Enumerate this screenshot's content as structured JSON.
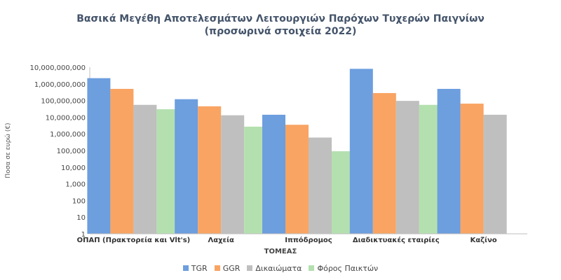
{
  "chart_data": {
    "type": "bar",
    "title": "Βασικά Μεγέθη Αποτελεσμάτων Λειτουργιών Παρόχων Τυχερών Παιγνίων",
    "subtitle": "(προσωρινά στοιχεία 2022)",
    "xlabel": "ΤΟΜΕΑΣ",
    "ylabel": "Ποσα σε ευρώ (€)",
    "yscale": "log",
    "ylim": [
      1,
      10000000000
    ],
    "yticks": [
      "1",
      "10",
      "100",
      "1,000",
      "10,000",
      "100,000",
      "1,000,000",
      "10,000,000",
      "100,000,000",
      "1,000,000,000",
      "10,000,000,000"
    ],
    "categories": [
      "ΟΠΑΠ (Πρακτορεία και Vlt's)",
      "Λαχεία",
      "Ιππόδρομος",
      "Διαδικτυακές εταιρίες",
      "Καζίνο"
    ],
    "series": [
      {
        "name": "TGR",
        "color": "#6d9ede",
        "values": [
          2200000000,
          120000000,
          14000000,
          8000000000,
          500000000
        ]
      },
      {
        "name": "GGR",
        "color": "#f9a463",
        "values": [
          500000000,
          45000000,
          3500000,
          280000000,
          65000000
        ]
      },
      {
        "name": "Δικαιώματα",
        "color": "#bfbfbf",
        "values": [
          55000000,
          13000000,
          600000,
          95000000,
          14000000
        ]
      },
      {
        "name": "Φόρος Παικτών",
        "color": "#b4e0af",
        "values": [
          30000000,
          2700000,
          90000,
          55000000,
          null
        ]
      }
    ],
    "grid": false,
    "legend_position": "bottom"
  }
}
